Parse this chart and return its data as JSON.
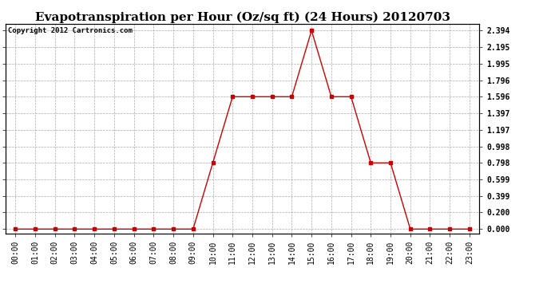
{
  "title": "Evapotranspiration per Hour (Oz/sq ft) (24 Hours) 20120703",
  "copyright": "Copyright 2012 Cartronics.com",
  "hours": [
    "00:00",
    "01:00",
    "02:00",
    "03:00",
    "04:00",
    "05:00",
    "06:00",
    "07:00",
    "08:00",
    "09:00",
    "10:00",
    "11:00",
    "12:00",
    "13:00",
    "14:00",
    "15:00",
    "16:00",
    "17:00",
    "18:00",
    "19:00",
    "20:00",
    "21:00",
    "22:00",
    "23:00"
  ],
  "values": [
    0.0,
    0.0,
    0.0,
    0.0,
    0.0,
    0.0,
    0.0,
    0.0,
    0.0,
    0.0,
    0.799,
    1.596,
    1.596,
    1.596,
    1.596,
    2.394,
    1.596,
    1.596,
    0.798,
    0.798,
    0.0,
    0.0,
    0.0,
    0.0
  ],
  "yticks": [
    0.0,
    0.2,
    0.399,
    0.599,
    0.798,
    0.998,
    1.197,
    1.397,
    1.596,
    1.796,
    1.995,
    2.195,
    2.394
  ],
  "line_color": "#cc0000",
  "marker": "s",
  "marker_size": 3,
  "bg_color": "#ffffff",
  "plot_bg_color": "#ffffff",
  "grid_color": "#aaaaaa",
  "title_fontsize": 11,
  "copyright_fontsize": 6.5,
  "tick_fontsize": 7,
  "ylim": [
    0.0,
    2.394
  ],
  "ypad": 0.1
}
